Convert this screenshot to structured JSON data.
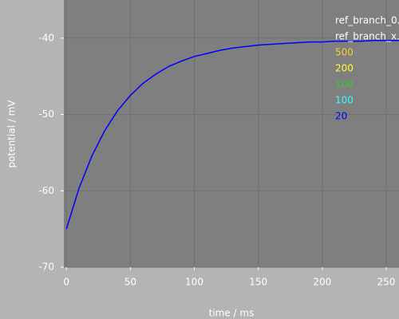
{
  "chart_data": {
    "type": "line",
    "xlabel": "time / ms",
    "ylabel": "potential / mV",
    "x": [
      0,
      10,
      20,
      30,
      40,
      50,
      60,
      70,
      80,
      90,
      100,
      110,
      120,
      130,
      140,
      150,
      160,
      170,
      180,
      190,
      200,
      210,
      220,
      230,
      240,
      250,
      260
    ],
    "series": [
      {
        "color": "#0000ff",
        "values": [
          -65.0,
          -59.6,
          -55.4,
          -52.1,
          -49.5,
          -47.5,
          -45.9,
          -44.7,
          -43.7,
          -43.0,
          -42.4,
          -42.0,
          -41.6,
          -41.3,
          -41.1,
          -40.9,
          -40.8,
          -40.7,
          -40.6,
          -40.5,
          -40.5,
          -40.4,
          -40.4,
          -40.4,
          -40.3,
          -40.3,
          -40.3
        ]
      }
    ],
    "legend": [
      {
        "label": "ref_branch_0.",
        "color": "#ffffff"
      },
      {
        "label": "ref_branch_x.",
        "color": "#ffffff"
      },
      {
        "label": "500",
        "color": "#ffcc33"
      },
      {
        "label": "200",
        "color": "#ffff33"
      },
      {
        "label": "100",
        "color": "#33cc33"
      },
      {
        "label": "100",
        "color": "#33ffff"
      },
      {
        "label": "20",
        "color": "#0000ff"
      }
    ],
    "xlim": [
      -2,
      260
    ],
    "ylim": [
      -70,
      -35
    ],
    "xticks": [
      0,
      50,
      100,
      150,
      200,
      250
    ],
    "yticks": [
      -70,
      -60,
      -50,
      -40
    ],
    "grid": true
  }
}
